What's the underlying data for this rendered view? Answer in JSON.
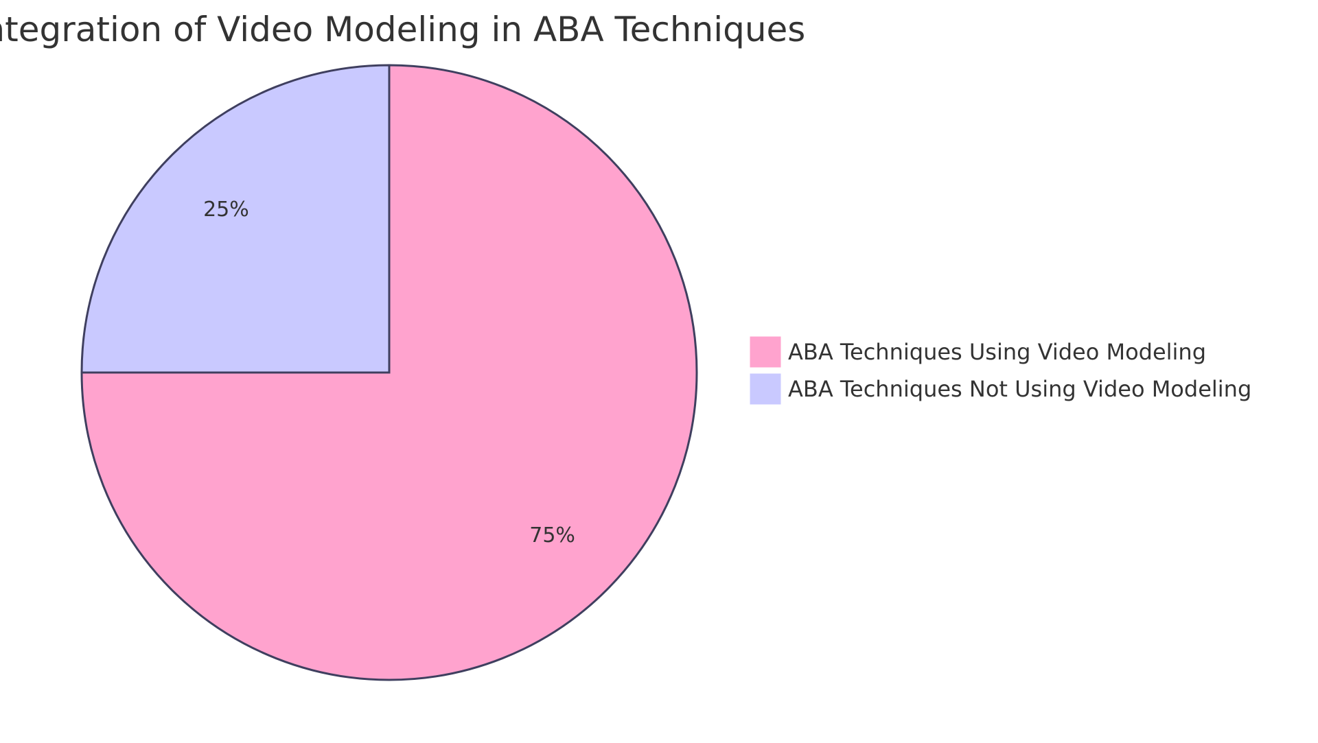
{
  "chart_data": {
    "type": "pie",
    "title": "Integration of Video Modeling in ABA Techniques",
    "categories": [
      "ABA Techniques Using Video Modeling",
      "ABA Techniques Not Using Video Modeling"
    ],
    "values": [
      75,
      25
    ],
    "slice_labels": [
      "75%",
      "25%"
    ],
    "colors": [
      "#FFA3CE",
      "#C9C9FF"
    ],
    "stroke_color": "#3F3F5F",
    "legend_position": "right"
  }
}
